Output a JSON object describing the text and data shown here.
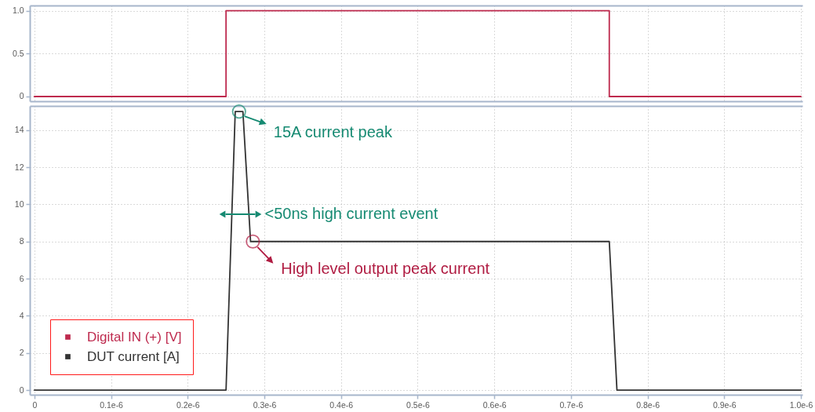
{
  "chart_data": [
    {
      "type": "line",
      "series": [
        {
          "name": "Digital IN (+) [V]",
          "color": "#be2a4e",
          "x": [
            0,
            2.5e-07,
            2.5e-07,
            7.5e-07,
            7.5e-07,
            1e-06
          ],
          "values": [
            0,
            0,
            1,
            1,
            0,
            0
          ]
        }
      ],
      "xlim": [
        -6e-09,
        1.002e-06
      ],
      "xticks": [
        {
          "value": 0,
          "label": null
        },
        {
          "value": 1e-07,
          "label": null
        },
        {
          "value": 2e-07,
          "label": null
        },
        {
          "value": 3e-07,
          "label": null
        },
        {
          "value": 4e-07,
          "label": null
        },
        {
          "value": 5e-07,
          "label": null
        },
        {
          "value": 6e-07,
          "label": null
        },
        {
          "value": 7e-07,
          "label": null
        },
        {
          "value": 8e-07,
          "label": null
        },
        {
          "value": 9e-07,
          "label": null
        },
        {
          "value": 1e-06,
          "label": null
        }
      ],
      "ylim": [
        -0.055,
        1.06
      ],
      "yticks": [
        0,
        0.5,
        {
          "value": 1,
          "label": "1.0"
        }
      ],
      "grid": true,
      "tick_labels": "y"
    },
    {
      "type": "line",
      "series": [
        {
          "name": "DUT current [A]",
          "color": "#333333",
          "x": [
            0,
            2.5e-07,
            2.62e-07,
            2.72e-07,
            2.82e-07,
            7.5e-07,
            7.6e-07,
            1e-06
          ],
          "values": [
            0,
            0,
            15,
            15,
            8,
            8,
            0,
            0
          ]
        }
      ],
      "xlim": [
        -6e-09,
        1.002e-06
      ],
      "xticks": [
        0,
        {
          "value": 1e-07,
          "label": "0.1e-6"
        },
        {
          "value": 2e-07,
          "label": "0.2e-6"
        },
        {
          "value": 3e-07,
          "label": "0.3e-6"
        },
        {
          "value": 4e-07,
          "label": "0.4e-6"
        },
        {
          "value": 5e-07,
          "label": "0.5e-6"
        },
        {
          "value": 6e-07,
          "label": "0.6e-6"
        },
        {
          "value": 7e-07,
          "label": "0.7e-6"
        },
        {
          "value": 8e-07,
          "label": "0.8e-6"
        },
        {
          "value": 9e-07,
          "label": "0.9e-6"
        },
        {
          "value": 1e-06,
          "label": "1.0e-6"
        }
      ],
      "ylim": [
        -0.25,
        15.3
      ],
      "yticks": [
        0,
        2,
        4,
        6,
        8,
        10,
        12,
        14
      ],
      "grid": true,
      "legend": "bottom left",
      "annotations": [
        {
          "text": "15A current peak",
          "x": 2.67e-07,
          "y": 15
        },
        "<50ns high current event",
        {
          "text": "High level output peak current",
          "x": 2.85e-07,
          "y": 8
        }
      ]
    }
  ]
}
